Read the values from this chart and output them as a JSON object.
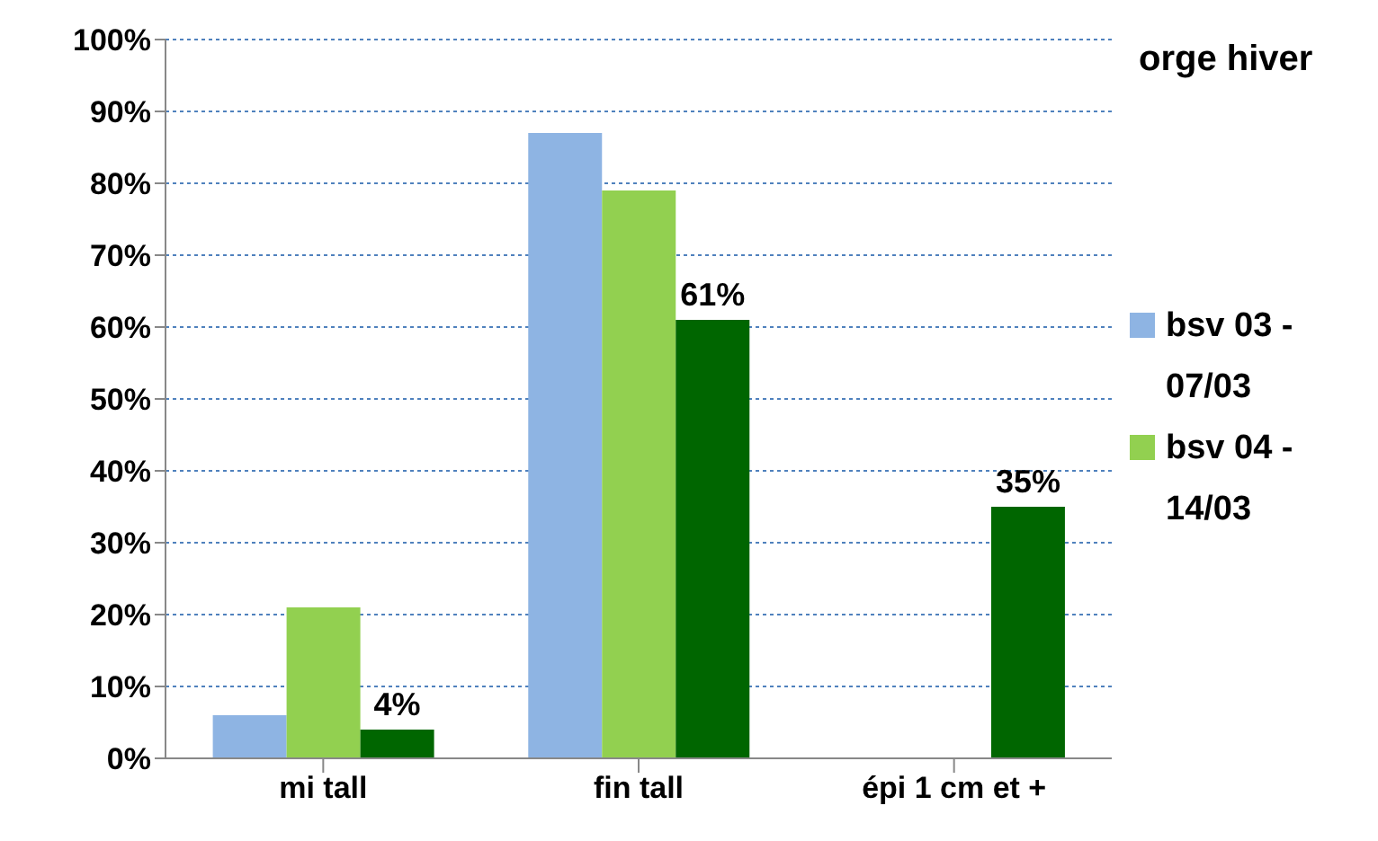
{
  "chart_data": {
    "type": "bar",
    "categories": [
      "mi tall",
      "fin tall",
      "épi 1 cm et +"
    ],
    "series": [
      {
        "name": "bsv 03 - 07/03",
        "color": "#8eb4e3",
        "values": [
          6,
          87,
          null
        ]
      },
      {
        "name": "bsv 04 - 14/03",
        "color": "#92d050",
        "values": [
          21,
          79,
          null
        ]
      },
      {
        "color": "#006600",
        "values": [
          4,
          61,
          35
        ],
        "value_labels": [
          "4%",
          "61%",
          "35%"
        ]
      }
    ],
    "ylim": [
      0,
      100
    ],
    "yticks": [
      {
        "value": 0,
        "label": "0%"
      },
      {
        "value": 10,
        "label": "10%"
      },
      {
        "value": 20,
        "label": "20%"
      },
      {
        "value": 30,
        "label": "30%"
      },
      {
        "value": 40,
        "label": "40%"
      },
      {
        "value": 50,
        "label": "50%"
      },
      {
        "value": 60,
        "label": "60%"
      },
      {
        "value": 70,
        "label": "70%"
      },
      {
        "value": 80,
        "label": "80%"
      },
      {
        "value": 90,
        "label": "90%"
      },
      {
        "value": 100,
        "label": "100%"
      }
    ],
    "grid": "y",
    "legend": "right",
    "annotations": [
      "orge hiver"
    ]
  }
}
